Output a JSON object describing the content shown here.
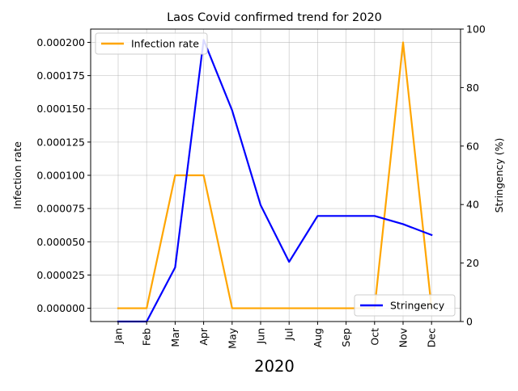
{
  "chart_data": {
    "type": "line",
    "title": "Laos Covid confirmed trend for 2020",
    "xlabel": "2020",
    "categories": [
      "Jan",
      "Feb",
      "Mar",
      "Apr",
      "May",
      "Jun",
      "Jul",
      "Aug",
      "Sep",
      "Oct",
      "Nov",
      "Dec"
    ],
    "left_axis": {
      "label": "Infection rate",
      "ylim": [
        -1e-05,
        0.00021
      ],
      "ticks": [
        0,
        2.5e-05,
        5e-05,
        7.5e-05,
        0.0001,
        0.000125,
        0.00015,
        0.000175,
        0.0002
      ],
      "tick_labels": [
        "0.000000",
        "0.000025",
        "0.000050",
        "0.000075",
        "0.000100",
        "0.000125",
        "0.000150",
        "0.000175",
        "0.000200"
      ]
    },
    "right_axis": {
      "label": "Stringency (%)",
      "ylim": [
        0,
        100
      ],
      "ticks": [
        0,
        20,
        40,
        60,
        80,
        100
      ],
      "tick_labels": [
        "0",
        "20",
        "40",
        "60",
        "80",
        "100"
      ]
    },
    "series": [
      {
        "name": "Infection rate",
        "axis": "left",
        "color": "#ffa500",
        "legend_position": "upper-left",
        "values": [
          0,
          0,
          0.0001,
          0.0001,
          0,
          0,
          0,
          0,
          0,
          0,
          0.0002,
          0
        ]
      },
      {
        "name": "Stringency",
        "axis": "right",
        "color": "#0000ff",
        "legend_position": "lower-right",
        "values": [
          0,
          0,
          18.5,
          96.3,
          72.2,
          39.8,
          20.4,
          36.1,
          36.1,
          36.1,
          33.3,
          29.6
        ]
      }
    ],
    "grid": true
  }
}
